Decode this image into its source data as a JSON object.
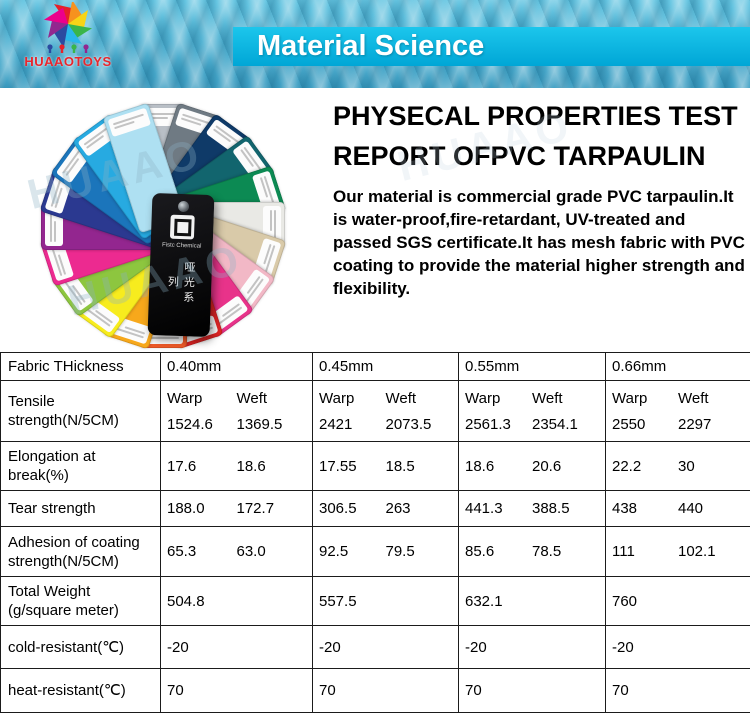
{
  "banner": {
    "title": "Material Science",
    "logo_text": "HUAAOTOYS",
    "bar_color": "#00a6d6"
  },
  "watermark_text": "HUAAO",
  "intro": {
    "heading1": "PHYSECAL PROPERTIES TEST",
    "heading2": "REPORT OFPVC TARPAULIN",
    "paragraph": "Our material is commercial grade PVC tarpaulin.It is water-proof,fire-retardant, UV-treated and passed SGS certificate.It has mesh fabric with PVC coating to provide the material higher strength and flexibility."
  },
  "swatch": {
    "tag_brand": "Fistc Chemical",
    "tag_series": "哑光系列",
    "colors": [
      "#b9bfc6",
      "#6f7a83",
      "#0f3a68",
      "#12656e",
      "#0c8a53",
      "#e9e9e5",
      "#d9caa9",
      "#f2b8c6",
      "#e8338a",
      "#e02424",
      "#f05a28",
      "#f7a81b",
      "#f7ec1e",
      "#8dc63f",
      "#ec2a90",
      "#93268f",
      "#2b3990",
      "#1b75bb",
      "#27aae1",
      "#aee0f2"
    ]
  },
  "table": {
    "rows": [
      {
        "label": "Fabric THickness",
        "values": [
          "0.40mm",
          "0.45mm",
          "0.55mm",
          "0.66mm"
        ]
      },
      {
        "label": "Tensile strength(N/5CM)",
        "sub": [
          "Warp",
          "Weft"
        ],
        "values": [
          [
            "1524.6",
            "1369.5"
          ],
          [
            "2421",
            "2073.5"
          ],
          [
            "2561.3",
            "2354.1"
          ],
          [
            "2550",
            "2297"
          ]
        ]
      },
      {
        "label": "Elongation at break(%)",
        "values": [
          [
            "17.6",
            "18.6"
          ],
          [
            "17.55",
            "18.5"
          ],
          [
            "18.6",
            "20.6"
          ],
          [
            "22.2",
            "30"
          ]
        ]
      },
      {
        "label": "Tear strength",
        "values": [
          [
            "188.0",
            "172.7"
          ],
          [
            "306.5",
            "263"
          ],
          [
            "441.3",
            "388.5"
          ],
          [
            "438",
            "440"
          ]
        ]
      },
      {
        "label": "Adhesion of coating strength(N/5CM)",
        "values": [
          [
            "65.3",
            "63.0"
          ],
          [
            "92.5",
            "79.5"
          ],
          [
            "85.6",
            "78.5"
          ],
          [
            "111",
            "102.1"
          ]
        ]
      },
      {
        "label": "Total Weight (g/square meter)",
        "values": [
          "504.8",
          "557.5",
          "632.1",
          "760"
        ]
      },
      {
        "label": "cold-resistant(℃)",
        "values": [
          "-20",
          "-20",
          "-20",
          "-20"
        ]
      },
      {
        "label": "heat-resistant(℃)",
        "values": [
          "70",
          "70",
          "70",
          "70"
        ]
      }
    ]
  }
}
